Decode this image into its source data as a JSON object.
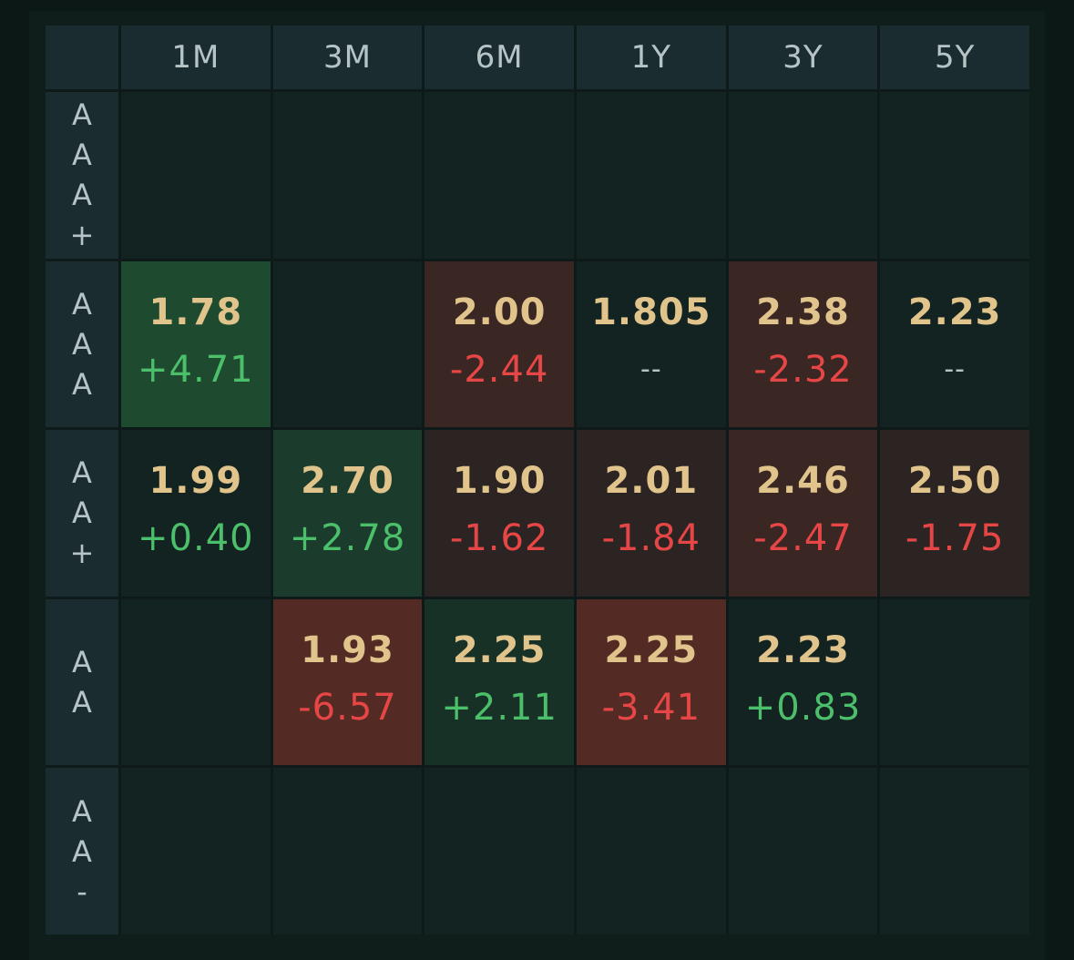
{
  "columns": [
    "1M",
    "3M",
    "6M",
    "1Y",
    "3Y",
    "5Y"
  ],
  "rows": [
    {
      "label_chars": [
        "A",
        "A",
        "A",
        "+"
      ],
      "cells": [
        null,
        null,
        null,
        null,
        null,
        null
      ]
    },
    {
      "label_chars": [
        "A",
        "A",
        "A"
      ],
      "cells": [
        {
          "rate": "1.78",
          "change": "+4.71",
          "dir": "up",
          "tone": "pos-strong"
        },
        null,
        {
          "rate": "2.00",
          "change": "-2.44",
          "dir": "down",
          "tone": "neg-mid"
        },
        {
          "rate": "1.805",
          "change": "--",
          "dir": "flat",
          "tone": "neutral"
        },
        {
          "rate": "2.38",
          "change": "-2.32",
          "dir": "down",
          "tone": "neg-mid"
        },
        {
          "rate": "2.23",
          "change": "--",
          "dir": "flat",
          "tone": "neutral"
        }
      ]
    },
    {
      "label_chars": [
        "A",
        "A",
        "+"
      ],
      "cells": [
        {
          "rate": "1.99",
          "change": "+0.40",
          "dir": "up",
          "tone": "neutral"
        },
        {
          "rate": "2.70",
          "change": "+2.78",
          "dir": "up",
          "tone": "pos-mid"
        },
        {
          "rate": "1.90",
          "change": "-1.62",
          "dir": "down",
          "tone": "neg-light"
        },
        {
          "rate": "2.01",
          "change": "-1.84",
          "dir": "down",
          "tone": "neg-light"
        },
        {
          "rate": "2.46",
          "change": "-2.47",
          "dir": "down",
          "tone": "neg-mid"
        },
        {
          "rate": "2.50",
          "change": "-1.75",
          "dir": "down",
          "tone": "neg-light"
        }
      ]
    },
    {
      "label_chars": [
        "A",
        "A"
      ],
      "cells": [
        null,
        {
          "rate": "1.93",
          "change": "-6.57",
          "dir": "down",
          "tone": "neg-strong"
        },
        {
          "rate": "2.25",
          "change": "+2.11",
          "dir": "up",
          "tone": "pos-light"
        },
        {
          "rate": "2.25",
          "change": "-3.41",
          "dir": "down",
          "tone": "neg-strong"
        },
        {
          "rate": "2.23",
          "change": "+0.83",
          "dir": "up",
          "tone": "neutral"
        },
        null
      ]
    },
    {
      "label_chars": [
        "A",
        "A",
        "-"
      ],
      "cells": [
        null,
        null,
        null,
        null,
        null,
        null
      ]
    }
  ],
  "colors": {
    "rate_text": "#e0c48c",
    "up_text": "#4cbf6a",
    "down_text": "#e64646",
    "header_bg": "#1a2c30",
    "cell_bg": "#132321"
  }
}
